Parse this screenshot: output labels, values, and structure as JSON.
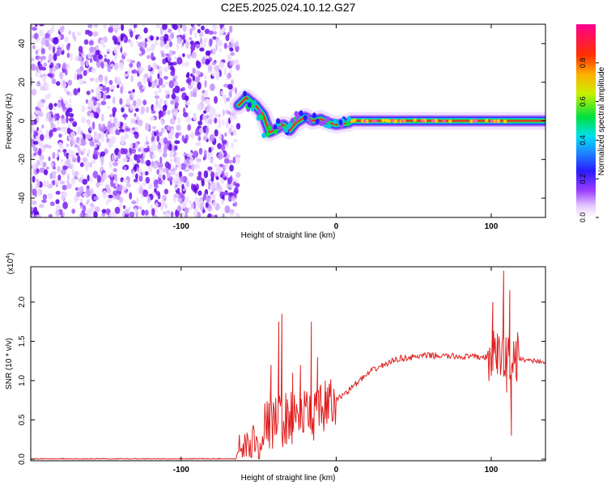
{
  "title": "C2E5.2025.024.10.12.G27",
  "chart_data": [
    {
      "type": "heatmap",
      "xlabel": "Height of straight line (km)",
      "ylabel": "Frequency (Hz)",
      "xlim": [
        -197,
        135
      ],
      "ylim": [
        -50,
        50
      ],
      "xticks": [
        -100,
        0,
        100
      ],
      "yticks": [
        -40,
        -20,
        0,
        20,
        40
      ],
      "colorbar": {
        "label": "Normalized spectral amplitude",
        "range": [
          0,
          1
        ],
        "ticks": [
          "0.0",
          "0.2",
          "0.4",
          "0.6",
          "0.8"
        ]
      },
      "noise_region_x": [
        -197,
        -63
      ],
      "signal_track": [
        {
          "x": -63,
          "y": 8
        },
        {
          "x": -58,
          "y": 12
        },
        {
          "x": -52,
          "y": 8
        },
        {
          "x": -47,
          "y": 3
        },
        {
          "x": -43,
          "y": -6
        },
        {
          "x": -38,
          "y": -4
        },
        {
          "x": -34,
          "y": -2
        },
        {
          "x": -30,
          "y": -5
        },
        {
          "x": -26,
          "y": -1
        },
        {
          "x": -20,
          "y": 2
        },
        {
          "x": -15,
          "y": 0
        },
        {
          "x": -10,
          "y": 1
        },
        {
          "x": -5,
          "y": -1
        },
        {
          "x": 0,
          "y": -2
        },
        {
          "x": 8,
          "y": -1
        },
        {
          "x": 10,
          "y": 0
        },
        {
          "x": 50,
          "y": 0
        },
        {
          "x": 110,
          "y": 0
        },
        {
          "x": 135,
          "y": 0
        }
      ]
    },
    {
      "type": "line",
      "xlabel": "Height of straight line (km)",
      "ylabel": "SNR (10 * v/v)",
      "scale_label": "(x10",
      "scale_exp": "4",
      "xlim": [
        -197,
        135
      ],
      "ylim": [
        -0.02,
        2.45
      ],
      "xticks": [
        -100,
        0,
        100
      ],
      "yticks": [
        "0.0",
        "0.5",
        "1.0",
        "1.5",
        "2.0"
      ],
      "series": [
        {
          "color": "#e02020",
          "baseline": [
            {
              "x": -197,
              "y": 0.0
            },
            {
              "x": -64,
              "y": 0.0
            },
            {
              "x": -52,
              "y": 0.2
            },
            {
              "x": -45,
              "y": 0.45
            },
            {
              "x": -35,
              "y": 0.5
            },
            {
              "x": -25,
              "y": 0.55
            },
            {
              "x": -12,
              "y": 0.58
            },
            {
              "x": -5,
              "y": 0.65
            },
            {
              "x": 0,
              "y": 0.75
            },
            {
              "x": 8,
              "y": 0.88
            },
            {
              "x": 15,
              "y": 1.0
            },
            {
              "x": 25,
              "y": 1.15
            },
            {
              "x": 40,
              "y": 1.28
            },
            {
              "x": 60,
              "y": 1.32
            },
            {
              "x": 90,
              "y": 1.3
            },
            {
              "x": 100,
              "y": 1.3
            },
            {
              "x": 115,
              "y": 1.28
            },
            {
              "x": 135,
              "y": 1.24
            }
          ],
          "spikes": [
            {
              "x": -42,
              "y": 1.2
            },
            {
              "x": -37,
              "y": 1.75
            },
            {
              "x": -35,
              "y": 1.85
            },
            {
              "x": -33,
              "y": 0.2
            },
            {
              "x": -28,
              "y": 1.1
            },
            {
              "x": -23,
              "y": 1.2
            },
            {
              "x": -16,
              "y": 1.75
            },
            {
              "x": -12,
              "y": 1.3
            },
            {
              "x": -7,
              "y": 1.0
            },
            {
              "x": 101,
              "y": 2.0
            },
            {
              "x": 104,
              "y": 1.6
            },
            {
              "x": 108,
              "y": 2.4
            },
            {
              "x": 110,
              "y": 0.85
            },
            {
              "x": 112,
              "y": 2.15
            },
            {
              "x": 113,
              "y": 0.3
            },
            {
              "x": 116,
              "y": 1.5
            }
          ]
        }
      ]
    }
  ]
}
